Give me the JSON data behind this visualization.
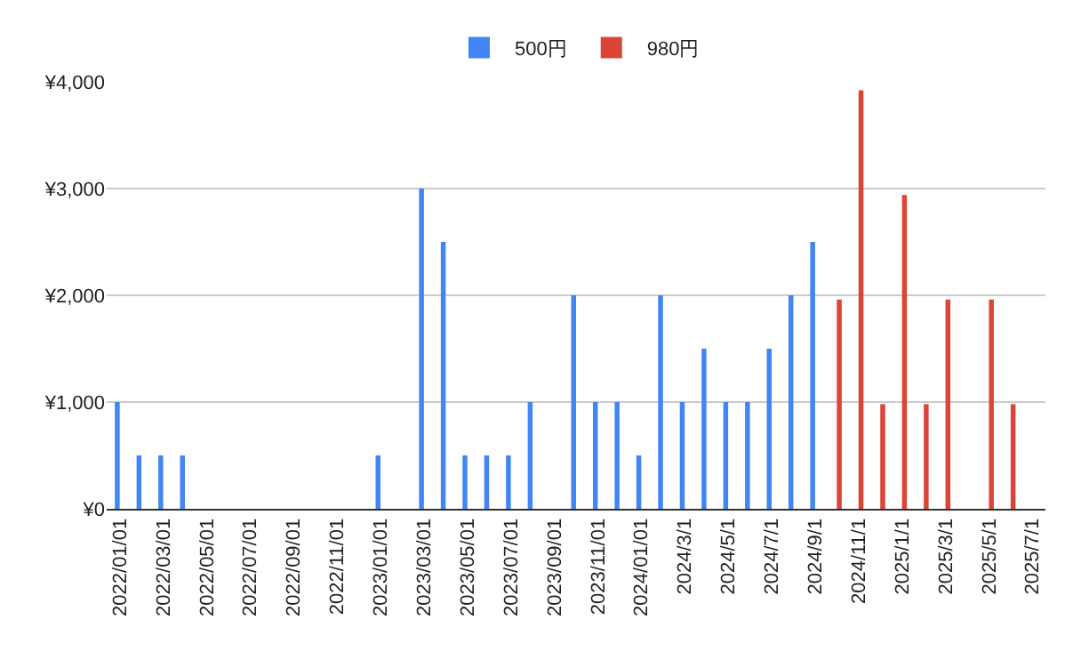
{
  "chart_data": {
    "type": "bar",
    "categories": [
      "2022/01/01",
      null,
      "2022/03/01",
      null,
      "2022/05/01",
      null,
      "2022/07/01",
      null,
      "2022/09/01",
      null,
      "2022/11/01",
      null,
      "2023/01/01",
      null,
      "2023/03/01",
      null,
      "2023/05/01",
      null,
      "2023/07/01",
      null,
      "2023/09/01",
      null,
      "2023/11/01",
      null,
      "2024/01/01",
      null,
      "2024/3/1",
      null,
      "2024/5/1",
      null,
      "2024/7/1",
      null,
      "2024/9/1",
      null,
      "2024/11/1",
      null,
      "2025/1/1",
      null,
      "2025/3/1",
      null,
      "2025/5/1",
      null,
      "2025/7/1"
    ],
    "series": [
      {
        "name": "500円",
        "color": "#4285f4",
        "values": [
          1000,
          500,
          500,
          500,
          null,
          null,
          null,
          null,
          null,
          null,
          null,
          null,
          500,
          null,
          3000,
          2500,
          500,
          500,
          500,
          1000,
          null,
          2000,
          1000,
          1000,
          500,
          2000,
          1000,
          1500,
          1000,
          1000,
          1500,
          2000,
          2500,
          null,
          null,
          null,
          null,
          null,
          null,
          null,
          null,
          null,
          null
        ]
      },
      {
        "name": "980円",
        "color": "#db4437",
        "values": [
          null,
          null,
          null,
          null,
          null,
          null,
          null,
          null,
          null,
          null,
          null,
          null,
          null,
          null,
          null,
          null,
          null,
          null,
          null,
          null,
          null,
          null,
          null,
          null,
          null,
          null,
          null,
          null,
          null,
          null,
          null,
          null,
          null,
          1960,
          3920,
          980,
          2940,
          980,
          1960,
          null,
          1960,
          980,
          null
        ]
      }
    ],
    "ylim": [
      0,
      4000
    ],
    "yticks": [
      {
        "value": 0,
        "label": "¥0"
      },
      {
        "value": 1000,
        "label": "¥1,000"
      },
      {
        "value": 2000,
        "label": "¥2,000"
      },
      {
        "value": 3000,
        "label": "¥3,000"
      },
      {
        "value": 4000,
        "label": "¥4,000"
      }
    ],
    "grid": "y",
    "legend": "top"
  }
}
